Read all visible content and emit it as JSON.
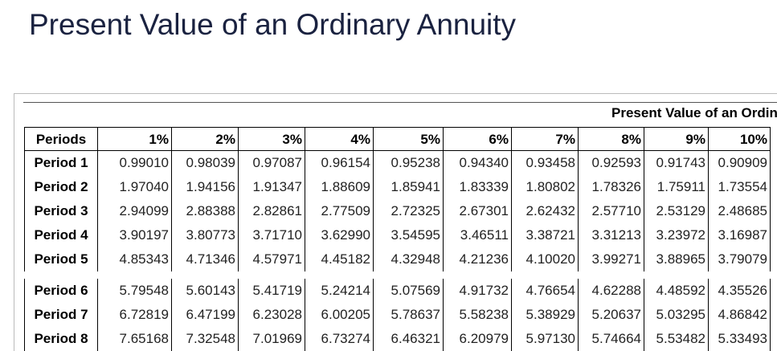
{
  "header": {
    "title": "Present Value of an Ordinary Annuity"
  },
  "table": {
    "caption": "Present Value of an Ordinary Annuity",
    "columns": [
      "Periods",
      "1%",
      "2%",
      "3%",
      "4%",
      "5%",
      "6%",
      "7%",
      "8%",
      "9%",
      "10%"
    ],
    "rows": [
      [
        "Period 1",
        "0.99010",
        "0.98039",
        "0.97087",
        "0.96154",
        "0.95238",
        "0.94340",
        "0.93458",
        "0.92593",
        "0.91743",
        "0.90909"
      ],
      [
        "Period 2",
        "1.97040",
        "1.94156",
        "1.91347",
        "1.88609",
        "1.85941",
        "1.83339",
        "1.80802",
        "1.78326",
        "1.75911",
        "1.73554"
      ],
      [
        "Period 3",
        "2.94099",
        "2.88388",
        "2.82861",
        "2.77509",
        "2.72325",
        "2.67301",
        "2.62432",
        "2.57710",
        "2.53129",
        "2.48685"
      ],
      [
        "Period 4",
        "3.90197",
        "3.80773",
        "3.71710",
        "3.62990",
        "3.54595",
        "3.46511",
        "3.38721",
        "3.31213",
        "3.23972",
        "3.16987"
      ],
      [
        "Period 5",
        "4.85343",
        "4.71346",
        "4.57971",
        "4.45182",
        "4.32948",
        "4.21236",
        "4.10020",
        "3.99271",
        "3.88965",
        "3.79079"
      ],
      [
        "Period 6",
        "5.79548",
        "5.60143",
        "5.41719",
        "5.24214",
        "5.07569",
        "4.91732",
        "4.76654",
        "4.62288",
        "4.48592",
        "4.35526"
      ],
      [
        "Period 7",
        "6.72819",
        "6.47199",
        "6.23028",
        "6.00205",
        "5.78637",
        "5.58238",
        "5.38929",
        "5.20637",
        "5.03295",
        "4.86842"
      ],
      [
        "Period 8",
        "7.65168",
        "7.32548",
        "7.01969",
        "6.73274",
        "6.46321",
        "6.20979",
        "5.97130",
        "5.74664",
        "5.53482",
        "5.33493"
      ]
    ]
  }
}
